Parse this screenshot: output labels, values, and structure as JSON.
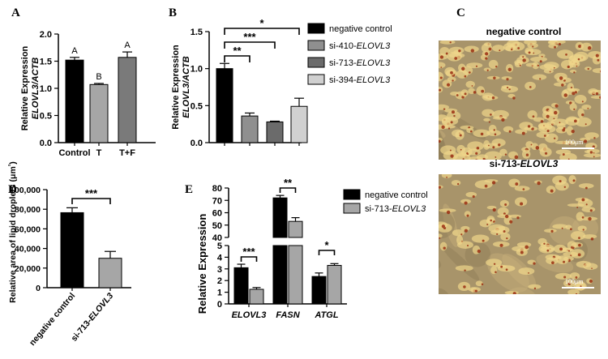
{
  "panels": {
    "A": {
      "letter": "A",
      "chart_data": {
        "type": "bar",
        "ylabel_line1": "Relative Expression",
        "ylabel_line2": "ELOVL3/ACTB",
        "ylim": [
          0,
          2.0
        ],
        "yticks": [
          "0.0",
          "0.5",
          "1.0",
          "1.5",
          "2.0"
        ],
        "categories": [
          "Control",
          "T",
          "T+F"
        ],
        "values": [
          1.52,
          1.07,
          1.57
        ],
        "errors": [
          0.05,
          0.02,
          0.1
        ],
        "colors": [
          "#000000",
          "#a6a6a6",
          "#7a7a7a"
        ],
        "letters": [
          "A",
          "B",
          "A"
        ]
      }
    },
    "B": {
      "letter": "B",
      "chart_data": {
        "type": "bar",
        "ylabel_line1": "Relative Expression",
        "ylabel_line2": "ELOVL3/ACTB",
        "ylim": [
          0,
          1.5
        ],
        "yticks": [
          "0.0",
          "0.5",
          "1.0",
          "1.5"
        ],
        "values": [
          1.0,
          0.36,
          0.28,
          0.49
        ],
        "errors": [
          0.07,
          0.04,
          0.01,
          0.11
        ],
        "colors": [
          "#000000",
          "#8f8f8f",
          "#6b6b6b",
          "#d0d0d0"
        ],
        "legend": [
          "negative control",
          "si-410-ELOVL3",
          "si-713-ELOVL3",
          "si-394-ELOVL3"
        ],
        "significance": [
          "**",
          "***",
          "*"
        ],
        "legend_position": "right"
      }
    },
    "C": {
      "letter": "C",
      "top_title": "negative control",
      "bottom_title": "si-713-ELOVL3",
      "scale_top": "100μm",
      "scale_bottom": "100μm"
    },
    "D": {
      "letter": "D",
      "chart_data": {
        "type": "bar",
        "ylabel": "Relative area of lipid droplets (μm²)",
        "ylim": [
          0,
          100000
        ],
        "yticks": [
          "0",
          "20,000",
          "40,000",
          "60,000",
          "80,000",
          "100,000"
        ],
        "categories": [
          "negative control",
          "si-713-ELOVL3"
        ],
        "values": [
          76500,
          30000
        ],
        "errors": [
          5000,
          7000
        ],
        "colors": [
          "#000000",
          "#a6a6a6"
        ],
        "significance": [
          "***"
        ]
      }
    },
    "E": {
      "letter": "E",
      "chart_data": {
        "type": "bar",
        "ylabel": "Relative Expression",
        "broken_axis": true,
        "lower_ylim": [
          0,
          5
        ],
        "upper_ylim": [
          40,
          80
        ],
        "lower_yticks": [
          "0",
          "1",
          "2",
          "3",
          "4",
          "5"
        ],
        "upper_yticks": [
          "40",
          "50",
          "60",
          "70",
          "80"
        ],
        "categories": [
          "ELOVL3",
          "FASN",
          "ATGL"
        ],
        "series": [
          {
            "name": "negative control",
            "values": [
              3.1,
              72.0,
              2.35
            ],
            "errors": [
              0.3,
              2.0,
              0.3
            ],
            "color": "#000000"
          },
          {
            "name": "si-713-ELOVL3",
            "values": [
              1.25,
              53.0,
              3.3
            ],
            "errors": [
              0.15,
              3.0,
              0.15
            ],
            "color": "#a6a6a6"
          }
        ],
        "significance": [
          "***",
          "**",
          "*"
        ],
        "legend_position": "top-right"
      }
    }
  }
}
